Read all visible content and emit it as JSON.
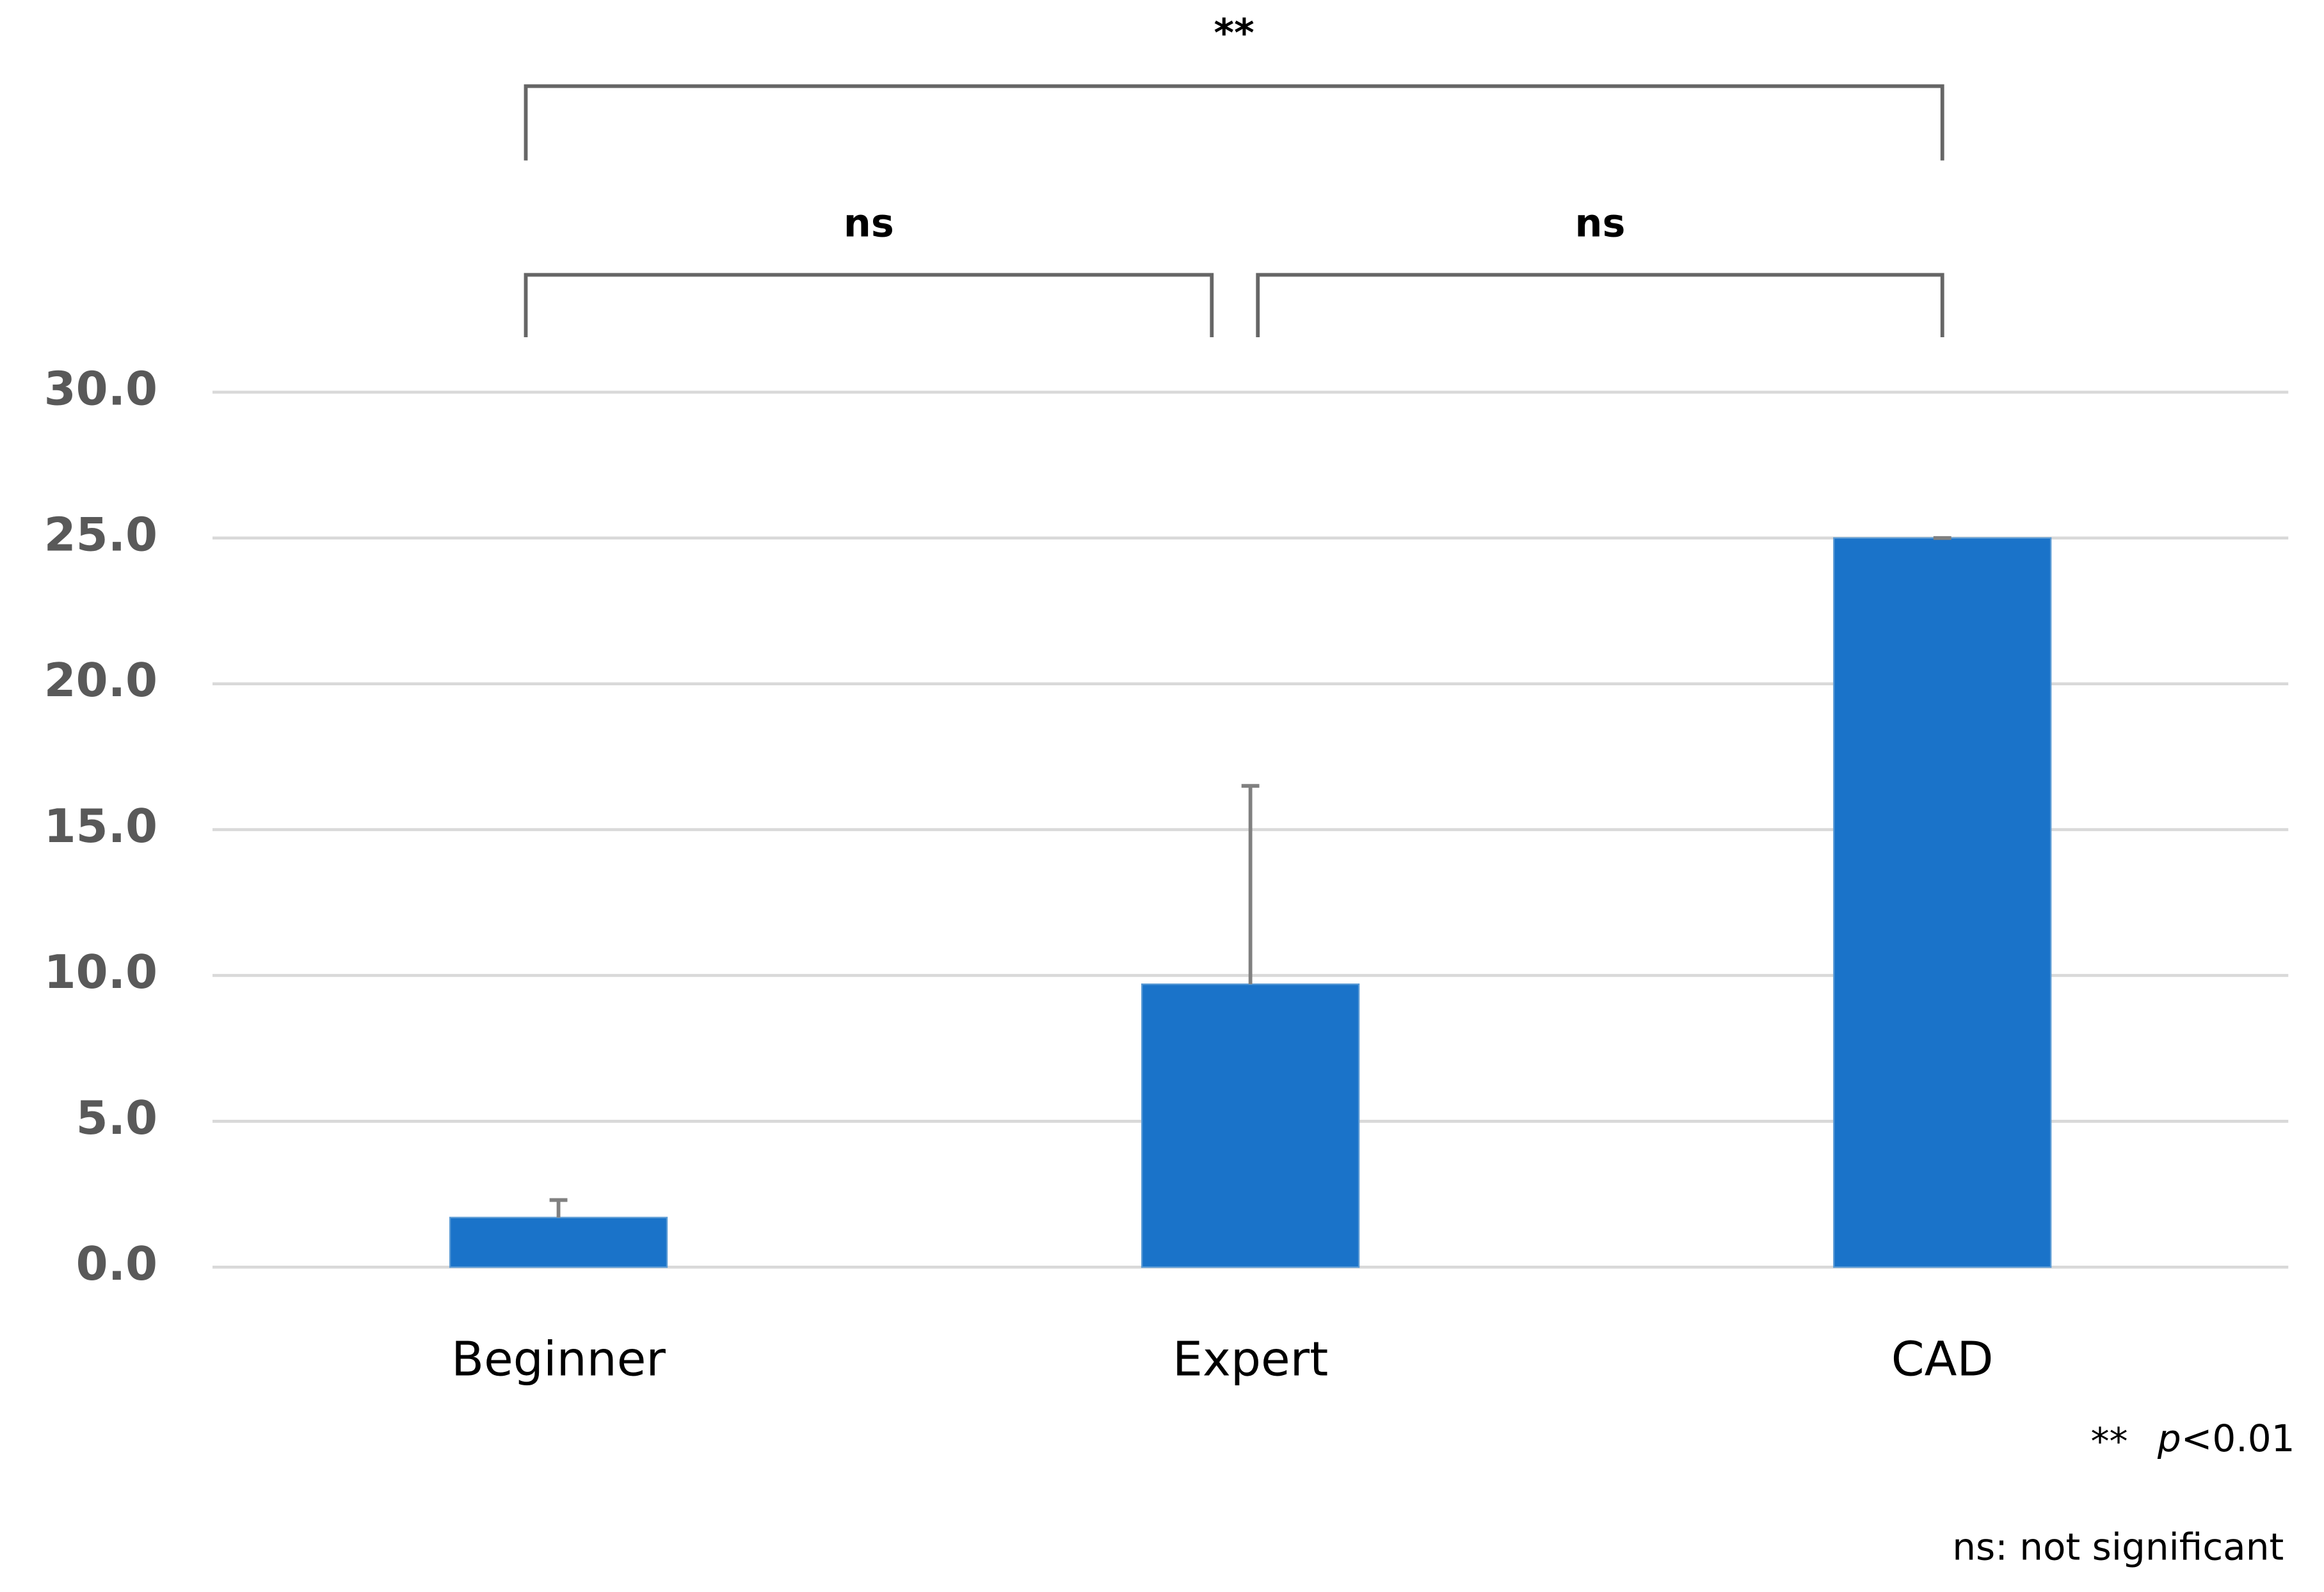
{
  "chart_data": {
    "type": "bar",
    "categories": [
      "Beginner",
      "Expert",
      "CAD"
    ],
    "values": [
      1.7,
      9.7,
      25.0
    ],
    "errors": [
      0.6,
      6.8,
      0.0
    ],
    "color": "#1a73c9",
    "ylim": [
      0,
      30
    ],
    "yticks": [
      {
        "value": 0,
        "label": "0.0"
      },
      {
        "value": 5,
        "label": "5.0"
      },
      {
        "value": 10,
        "label": "10.0"
      },
      {
        "value": 15,
        "label": "15.0"
      },
      {
        "value": 20,
        "label": "20.0"
      },
      {
        "value": 25,
        "label": "25.0"
      },
      {
        "value": 30,
        "label": "30.0"
      }
    ],
    "grid": true,
    "comparisons": [
      {
        "label": "**",
        "groups": [
          "Beginner",
          "CAD"
        ]
      },
      {
        "label": "ns",
        "groups": [
          "Beginner",
          "Expert"
        ]
      },
      {
        "label": "ns",
        "groups": [
          "Expert",
          "CAD"
        ]
      }
    ],
    "significance_note": {
      "symbol": "**",
      "p": "p",
      "threshold": "<0.01"
    },
    "ns_note": "ns: not significant"
  }
}
